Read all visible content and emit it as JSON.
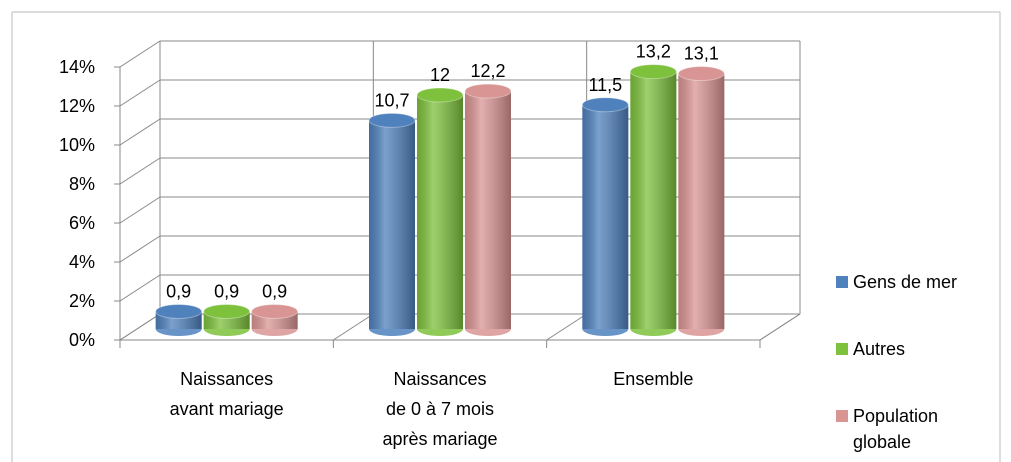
{
  "chart_data": {
    "type": "bar",
    "categories": [
      [
        "Naissances",
        "avant mariage"
      ],
      [
        "Naissances",
        "de 0 à 7 mois",
        "après mariage"
      ],
      [
        "Ensemble"
      ]
    ],
    "series": [
      {
        "name": "Gens de mer",
        "color": "#4f81bd",
        "values": [
          0.9,
          10.7,
          11.5
        ],
        "value_labels": [
          "0,9",
          "10,7",
          "11,5"
        ]
      },
      {
        "name": "Autres",
        "color": "#7dc13c",
        "values": [
          0.9,
          12,
          13.2
        ],
        "value_labels": [
          "0,9",
          "12",
          "13,2"
        ]
      },
      {
        "name": "Population globale",
        "color": "#d99594",
        "values": [
          0.9,
          12.2,
          13.1
        ],
        "value_labels": [
          "0,9",
          "12,2",
          "13,1"
        ]
      }
    ],
    "ylim": [
      0,
      14
    ],
    "yticks": [
      {
        "value": 0,
        "label": "0%"
      },
      {
        "value": 2,
        "label": "2%"
      },
      {
        "value": 4,
        "label": "4%"
      },
      {
        "value": 6,
        "label": "6%"
      },
      {
        "value": 8,
        "label": "8%"
      },
      {
        "value": 10,
        "label": "10%"
      },
      {
        "value": 12,
        "label": "12%"
      },
      {
        "value": 14,
        "label": "14%"
      }
    ],
    "grid": true,
    "legend": "right"
  }
}
